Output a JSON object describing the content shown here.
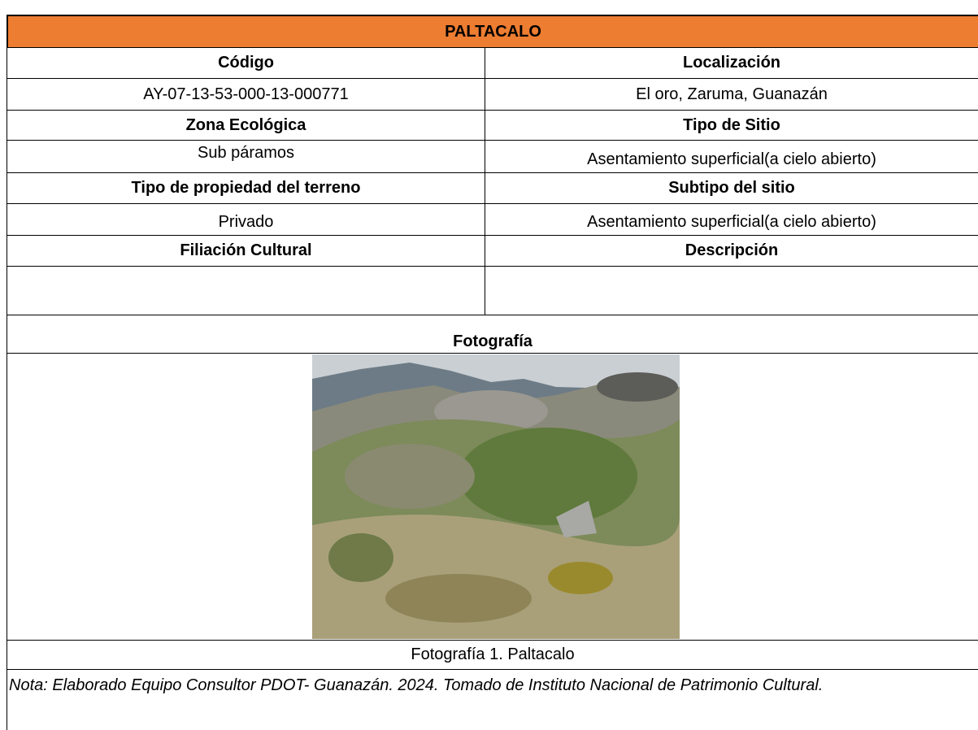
{
  "table": {
    "title": "PALTACALO",
    "rows": [
      [
        "Código",
        "Localización"
      ],
      [
        "AY-07-13-53-000-13-000771",
        "El oro, Zaruma, Guanazán"
      ],
      [
        "Zona Ecológica",
        "Tipo de Sitio"
      ],
      [
        "Sub páramos",
        "Asentamiento superficial(a cielo abierto)"
      ],
      [
        "Tipo de propiedad del terreno",
        "Subtipo del sitio"
      ],
      [
        "Privado",
        "Asentamiento superficial(a cielo abierto)"
      ],
      [
        "Filiación Cultural",
        "Descripción"
      ]
    ],
    "photo_heading": "Fotografía",
    "caption": "Fotografía 1. Paltacalo",
    "note": "Nota: Elaborado Equipo Consultor PDOT- Guanazán. 2024. Tomado de Instituto Nacional de Patrimonio Cultural."
  }
}
